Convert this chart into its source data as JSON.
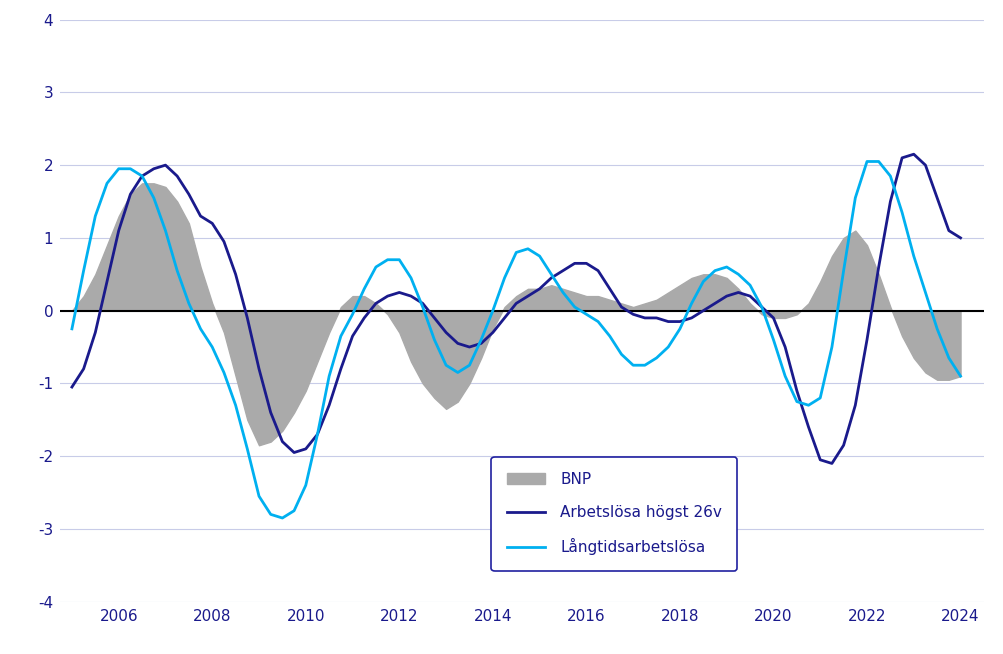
{
  "ylim": [
    -4,
    4
  ],
  "yticks": [
    -4,
    -3,
    -2,
    -1,
    0,
    1,
    2,
    3,
    4
  ],
  "background_color": "#ffffff",
  "grid_color": "#c8cce8",
  "zero_line_color": "#000000",
  "bnp_color": "#aaaaaa",
  "arbetslosa_color": "#1a1a8c",
  "langtids_color": "#00b0f0",
  "legend_text_color": "#1a1a8c",
  "text_color": "#1a1a8c",
  "years_bnp": [
    2005.0,
    2005.25,
    2005.5,
    2005.75,
    2006.0,
    2006.25,
    2006.5,
    2006.75,
    2007.0,
    2007.25,
    2007.5,
    2007.75,
    2008.0,
    2008.25,
    2008.5,
    2008.75,
    2009.0,
    2009.25,
    2009.5,
    2009.75,
    2010.0,
    2010.25,
    2010.5,
    2010.75,
    2011.0,
    2011.25,
    2011.5,
    2011.75,
    2012.0,
    2012.25,
    2012.5,
    2012.75,
    2013.0,
    2013.25,
    2013.5,
    2013.75,
    2014.0,
    2014.25,
    2014.5,
    2014.75,
    2015.0,
    2015.25,
    2015.5,
    2015.75,
    2016.0,
    2016.25,
    2016.5,
    2016.75,
    2017.0,
    2017.25,
    2017.5,
    2017.75,
    2018.0,
    2018.25,
    2018.5,
    2018.75,
    2019.0,
    2019.25,
    2019.5,
    2019.75,
    2020.0,
    2020.25,
    2020.5,
    2020.75,
    2021.0,
    2021.25,
    2021.5,
    2021.75,
    2022.0,
    2022.25,
    2022.5,
    2022.75,
    2023.0,
    2023.25,
    2023.5,
    2023.75,
    2024.0
  ],
  "bnp_values": [
    0.0,
    0.2,
    0.5,
    0.9,
    1.3,
    1.6,
    1.75,
    1.75,
    1.7,
    1.5,
    1.2,
    0.6,
    0.1,
    -0.3,
    -0.9,
    -1.5,
    -1.85,
    -1.8,
    -1.65,
    -1.4,
    -1.1,
    -0.7,
    -0.3,
    0.05,
    0.2,
    0.2,
    0.1,
    -0.05,
    -0.3,
    -0.7,
    -1.0,
    -1.2,
    -1.35,
    -1.25,
    -1.0,
    -0.65,
    -0.25,
    0.05,
    0.2,
    0.3,
    0.3,
    0.35,
    0.3,
    0.25,
    0.2,
    0.2,
    0.15,
    0.1,
    0.05,
    0.1,
    0.15,
    0.25,
    0.35,
    0.45,
    0.5,
    0.5,
    0.45,
    0.3,
    0.1,
    -0.05,
    -0.1,
    -0.1,
    -0.05,
    0.1,
    0.4,
    0.75,
    1.0,
    1.1,
    0.9,
    0.5,
    0.05,
    -0.35,
    -0.65,
    -0.85,
    -0.95,
    -0.95,
    -0.9
  ],
  "years_arb": [
    2005.0,
    2005.25,
    2005.5,
    2005.75,
    2006.0,
    2006.25,
    2006.5,
    2006.75,
    2007.0,
    2007.25,
    2007.5,
    2007.75,
    2008.0,
    2008.25,
    2008.5,
    2008.75,
    2009.0,
    2009.25,
    2009.5,
    2009.75,
    2010.0,
    2010.25,
    2010.5,
    2010.75,
    2011.0,
    2011.25,
    2011.5,
    2011.75,
    2012.0,
    2012.25,
    2012.5,
    2012.75,
    2013.0,
    2013.25,
    2013.5,
    2013.75,
    2014.0,
    2014.25,
    2014.5,
    2014.75,
    2015.0,
    2015.25,
    2015.5,
    2015.75,
    2016.0,
    2016.25,
    2016.5,
    2016.75,
    2017.0,
    2017.25,
    2017.5,
    2017.75,
    2018.0,
    2018.25,
    2018.5,
    2018.75,
    2019.0,
    2019.25,
    2019.5,
    2019.75,
    2020.0,
    2020.25,
    2020.5,
    2020.75,
    2021.0,
    2021.25,
    2021.5,
    2021.75,
    2022.0,
    2022.25,
    2022.5,
    2022.75,
    2023.0,
    2023.25,
    2023.5,
    2023.75,
    2024.0
  ],
  "arb_values": [
    -1.05,
    -0.8,
    -0.3,
    0.4,
    1.1,
    1.6,
    1.85,
    1.95,
    2.0,
    1.85,
    1.6,
    1.3,
    1.2,
    0.95,
    0.5,
    -0.1,
    -0.8,
    -1.4,
    -1.8,
    -1.95,
    -1.9,
    -1.7,
    -1.3,
    -0.8,
    -0.35,
    -0.1,
    0.1,
    0.2,
    0.25,
    0.2,
    0.1,
    -0.1,
    -0.3,
    -0.45,
    -0.5,
    -0.45,
    -0.3,
    -0.1,
    0.1,
    0.2,
    0.3,
    0.45,
    0.55,
    0.65,
    0.65,
    0.55,
    0.3,
    0.05,
    -0.05,
    -0.1,
    -0.1,
    -0.15,
    -0.15,
    -0.1,
    0.0,
    0.1,
    0.2,
    0.25,
    0.2,
    0.05,
    -0.1,
    -0.5,
    -1.1,
    -1.6,
    -2.05,
    -2.1,
    -1.85,
    -1.3,
    -0.4,
    0.6,
    1.5,
    2.1,
    2.15,
    2.0,
    1.55,
    1.1,
    1.0
  ],
  "years_lng": [
    2005.0,
    2005.25,
    2005.5,
    2005.75,
    2006.0,
    2006.25,
    2006.5,
    2006.75,
    2007.0,
    2007.25,
    2007.5,
    2007.75,
    2008.0,
    2008.25,
    2008.5,
    2008.75,
    2009.0,
    2009.25,
    2009.5,
    2009.75,
    2010.0,
    2010.25,
    2010.5,
    2010.75,
    2011.0,
    2011.25,
    2011.5,
    2011.75,
    2012.0,
    2012.25,
    2012.5,
    2012.75,
    2013.0,
    2013.25,
    2013.5,
    2013.75,
    2014.0,
    2014.25,
    2014.5,
    2014.75,
    2015.0,
    2015.25,
    2015.5,
    2015.75,
    2016.0,
    2016.25,
    2016.5,
    2016.75,
    2017.0,
    2017.25,
    2017.5,
    2017.75,
    2018.0,
    2018.25,
    2018.5,
    2018.75,
    2019.0,
    2019.25,
    2019.5,
    2019.75,
    2020.0,
    2020.25,
    2020.5,
    2020.75,
    2021.0,
    2021.25,
    2021.5,
    2021.75,
    2022.0,
    2022.25,
    2022.5,
    2022.75,
    2023.0,
    2023.25,
    2023.5,
    2023.75,
    2024.0
  ],
  "lng_values": [
    -0.25,
    0.55,
    1.3,
    1.75,
    1.95,
    1.95,
    1.85,
    1.55,
    1.1,
    0.55,
    0.1,
    -0.25,
    -0.5,
    -0.85,
    -1.3,
    -1.9,
    -2.55,
    -2.8,
    -2.85,
    -2.75,
    -2.4,
    -1.7,
    -0.9,
    -0.35,
    -0.05,
    0.3,
    0.6,
    0.7,
    0.7,
    0.45,
    0.05,
    -0.4,
    -0.75,
    -0.85,
    -0.75,
    -0.4,
    0.0,
    0.45,
    0.8,
    0.85,
    0.75,
    0.5,
    0.25,
    0.05,
    -0.05,
    -0.15,
    -0.35,
    -0.6,
    -0.75,
    -0.75,
    -0.65,
    -0.5,
    -0.25,
    0.1,
    0.4,
    0.55,
    0.6,
    0.5,
    0.35,
    0.05,
    -0.4,
    -0.9,
    -1.25,
    -1.3,
    -1.2,
    -0.5,
    0.55,
    1.55,
    2.05,
    2.05,
    1.85,
    1.35,
    0.75,
    0.25,
    -0.25,
    -0.65,
    -0.9
  ],
  "xlim": [
    2004.75,
    2024.5
  ],
  "xticks": [
    2006,
    2008,
    2010,
    2012,
    2014,
    2016,
    2018,
    2020,
    2022,
    2024
  ],
  "xtick_labels": [
    "2006",
    "2008",
    "2010",
    "2012",
    "2014",
    "2016",
    "2018",
    "2020",
    "2022",
    "2024"
  ],
  "legend_labels": [
    "BNP",
    "Arbetslösa högst 26v",
    "Långtidsarbetslösa"
  ]
}
